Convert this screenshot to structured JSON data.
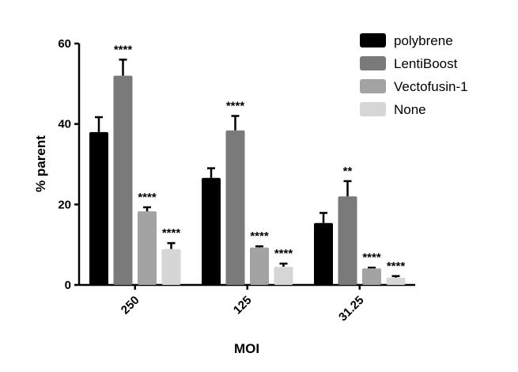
{
  "chart_data": {
    "type": "bar",
    "title": "",
    "xlabel": "MOI",
    "ylabel": "% parent",
    "ylim": [
      0,
      60
    ],
    "yticks": [
      0,
      20,
      40,
      60
    ],
    "categories": [
      "250",
      "125",
      "31.25"
    ],
    "legend_position": "top-right",
    "series": [
      {
        "name": "polybrene",
        "color": "#000000",
        "values": [
          38,
          26.6,
          15.4
        ],
        "errors": [
          3.7,
          2.4,
          2.5
        ],
        "significance": [
          "",
          "",
          ""
        ]
      },
      {
        "name": "LentiBoost",
        "color": "#7a7a7a",
        "values": [
          52,
          38.4,
          22
        ],
        "errors": [
          4,
          3.6,
          3.8
        ],
        "significance": [
          "****",
          "****",
          "**"
        ]
      },
      {
        "name": "Vectofusin-1",
        "color": "#a3a3a3",
        "values": [
          18.3,
          9.3,
          4.1
        ],
        "errors": [
          1,
          0.3,
          0.2
        ],
        "significance": [
          "****",
          "****",
          "****"
        ]
      },
      {
        "name": "None",
        "color": "#d6d6d6",
        "values": [
          8.9,
          4.5,
          1.8
        ],
        "errors": [
          1.5,
          0.8,
          0.4
        ],
        "significance": [
          "****",
          "****",
          "****"
        ]
      }
    ]
  }
}
